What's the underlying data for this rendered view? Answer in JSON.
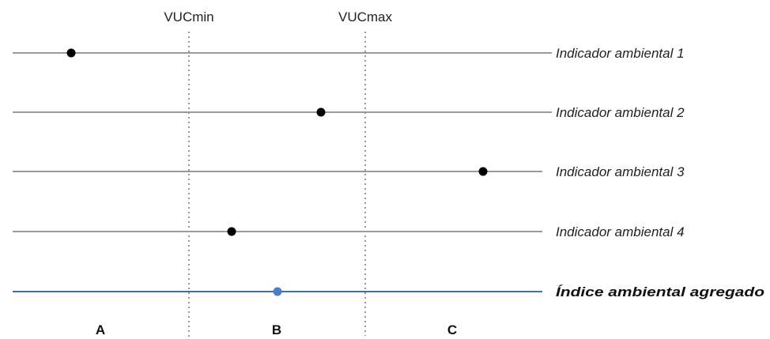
{
  "thresholds": [
    {
      "label": "VUCmin"
    },
    {
      "label": "VUCmax"
    }
  ],
  "indicators": [
    {
      "label": "Indicador ambiental 1",
      "line_color": "#9a9a9a",
      "dot_color": "#000000",
      "bold": false
    },
    {
      "label": "Indicador ambiental 2",
      "line_color": "#9a9a9a",
      "dot_color": "#000000",
      "bold": false
    },
    {
      "label": "Indicador ambiental 3",
      "line_color": "#9a9a9a",
      "dot_color": "#000000",
      "bold": false
    },
    {
      "label": "Indicador ambiental 4",
      "line_color": "#9a9a9a",
      "dot_color": "#000000",
      "bold": false
    },
    {
      "label": "Índice ambiental agregado",
      "line_color": "#3a6fb0",
      "dot_color": "#4a7fc8",
      "bold": true
    }
  ],
  "zones": [
    {
      "label": "A"
    },
    {
      "label": "B"
    },
    {
      "label": "C"
    }
  ]
}
